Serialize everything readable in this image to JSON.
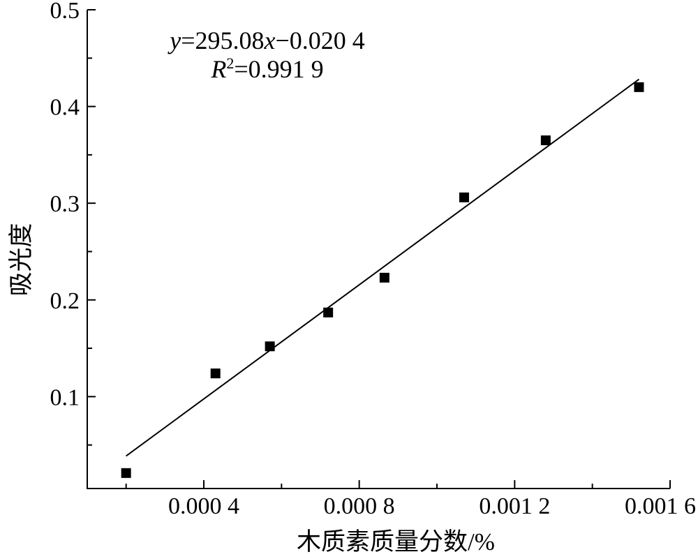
{
  "chart_data": {
    "type": "scatter",
    "xlabel": "木质素质量分数/%",
    "ylabel": "吸光度",
    "xlim": [
      0.0001,
      0.0016
    ],
    "ylim": [
      0.005,
      0.5
    ],
    "grid": false,
    "xticks": [
      {
        "value": 0.0004,
        "label": "0.000 4"
      },
      {
        "value": 0.0008,
        "label": "0.000 8"
      },
      {
        "value": 0.0012,
        "label": "0.001 2"
      },
      {
        "value": 0.0016,
        "label": "0.001 6"
      }
    ],
    "xminor": [
      0.0002,
      0.0006,
      0.001,
      0.0014
    ],
    "yticks": [
      {
        "value": 0.1,
        "label": "0.1"
      },
      {
        "value": 0.2,
        "label": "0.2"
      },
      {
        "value": 0.3,
        "label": "0.3"
      },
      {
        "value": 0.4,
        "label": "0.4"
      },
      {
        "value": 0.5,
        "label": "0.5"
      }
    ],
    "yminor": [
      0.05,
      0.15,
      0.25,
      0.35,
      0.45
    ],
    "series": [
      {
        "x": [
          0.0002,
          0.00043,
          0.00057,
          0.00072,
          0.000865,
          0.00107,
          0.00128,
          0.00152
        ],
        "y": [
          0.021,
          0.124,
          0.152,
          0.187,
          0.223,
          0.306,
          0.365,
          0.42
        ],
        "color": "#000000"
      }
    ],
    "fit": {
      "slope": 295.08,
      "intercept": -0.0204,
      "r2": 0.9919,
      "color": "#000000"
    },
    "annotation": {
      "equation": {
        "y": "y",
        "coef": "=295.08",
        "x": "x",
        "intercept": "−0.020 4"
      },
      "r2": {
        "r": "R",
        "sup": "2",
        "value": "=0.991 9"
      }
    }
  }
}
